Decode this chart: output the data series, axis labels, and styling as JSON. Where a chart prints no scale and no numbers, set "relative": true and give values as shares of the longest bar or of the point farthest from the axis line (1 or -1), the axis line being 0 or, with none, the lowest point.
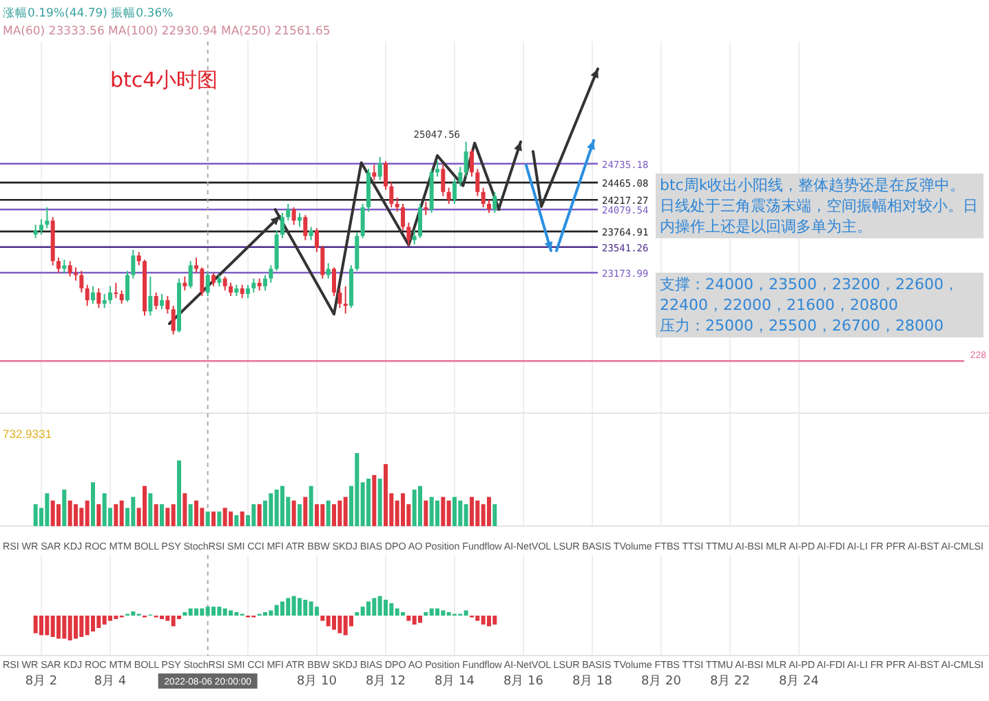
{
  "chart_data": [
    {
      "type": "candlestick",
      "title": "btc4小时图",
      "grid": "x",
      "tick_labels": false,
      "xlim": [
        "2022-07-31T19:12",
        "2022-08-29T12:29"
      ],
      "ylim": [
        21163,
        26487
      ],
      "xticks": [
        "2022-08-02",
        "2022-08-04",
        "2022-08-08",
        "2022-08-10",
        "2022-08-12",
        "2022-08-14",
        "2022-08-16",
        "2022-08-18",
        "2022-08-20",
        "2022-08-22",
        "2022-08-24"
      ],
      "x": [
        "2022-08-01T20:00",
        "2022-08-02T00:00",
        "2022-08-02T04:00",
        "2022-08-02T08:00",
        "2022-08-02T12:00",
        "2022-08-02T16:00",
        "2022-08-02T20:00",
        "2022-08-03T00:00",
        "2022-08-03T04:00",
        "2022-08-03T08:00",
        "2022-08-03T12:00",
        "2022-08-03T16:00",
        "2022-08-03T20:00",
        "2022-08-04T00:00",
        "2022-08-04T04:00",
        "2022-08-04T08:00",
        "2022-08-04T12:00",
        "2022-08-04T16:00",
        "2022-08-04T20:00",
        "2022-08-05T00:00",
        "2022-08-05T04:00",
        "2022-08-05T08:00",
        "2022-08-05T12:00",
        "2022-08-05T16:00",
        "2022-08-05T20:00",
        "2022-08-06T00:00",
        "2022-08-06T04:00",
        "2022-08-06T08:00",
        "2022-08-06T12:00",
        "2022-08-06T16:00",
        "2022-08-06T20:00",
        "2022-08-07T00:00",
        "2022-08-07T04:00",
        "2022-08-07T08:00",
        "2022-08-07T12:00",
        "2022-08-07T16:00",
        "2022-08-07T20:00",
        "2022-08-08T00:00",
        "2022-08-08T04:00",
        "2022-08-08T08:00",
        "2022-08-08T12:00",
        "2022-08-08T16:00",
        "2022-08-08T20:00",
        "2022-08-09T00:00",
        "2022-08-09T04:00",
        "2022-08-09T08:00",
        "2022-08-09T12:00",
        "2022-08-09T16:00",
        "2022-08-09T20:00",
        "2022-08-10T00:00",
        "2022-08-10T04:00",
        "2022-08-10T08:00",
        "2022-08-10T12:00",
        "2022-08-10T16:00",
        "2022-08-10T20:00",
        "2022-08-11T00:00",
        "2022-08-11T04:00",
        "2022-08-11T08:00",
        "2022-08-11T12:00",
        "2022-08-11T16:00",
        "2022-08-11T20:00",
        "2022-08-12T00:00",
        "2022-08-12T04:00",
        "2022-08-12T08:00",
        "2022-08-12T12:00",
        "2022-08-12T16:00",
        "2022-08-12T20:00",
        "2022-08-13T00:00",
        "2022-08-13T04:00",
        "2022-08-13T08:00",
        "2022-08-13T12:00",
        "2022-08-13T16:00",
        "2022-08-13T20:00",
        "2022-08-14T00:00",
        "2022-08-14T04:00",
        "2022-08-14T08:00",
        "2022-08-14T12:00",
        "2022-08-14T16:00",
        "2022-08-14T20:00",
        "2022-08-15T00:00",
        "2022-08-15T04:00"
      ],
      "ohlc": [
        [
          23720,
          23860,
          23670,
          23780
        ],
        [
          23780,
          23940,
          23720,
          23860
        ],
        [
          23860,
          24110,
          23810,
          23920
        ],
        [
          23920,
          23970,
          23280,
          23340
        ],
        [
          23340,
          23390,
          23170,
          23230
        ],
        [
          23230,
          23360,
          23170,
          23280
        ],
        [
          23280,
          23340,
          23120,
          23170
        ],
        [
          23170,
          23250,
          23060,
          23140
        ],
        [
          23140,
          23200,
          22890,
          22950
        ],
        [
          22950,
          23000,
          22700,
          22780
        ],
        [
          22780,
          22980,
          22730,
          22890
        ],
        [
          22890,
          22950,
          22670,
          22730
        ],
        [
          22730,
          22870,
          22670,
          22780
        ],
        [
          22780,
          22980,
          22730,
          22890
        ],
        [
          22890,
          23030,
          22810,
          22870
        ],
        [
          22870,
          22920,
          22730,
          22780
        ],
        [
          22780,
          23200,
          22760,
          23140
        ],
        [
          23140,
          23500,
          23090,
          23420
        ],
        [
          23420,
          23470,
          23280,
          23340
        ],
        [
          23340,
          23360,
          22560,
          22620
        ],
        [
          22620,
          23120,
          22560,
          22840
        ],
        [
          22840,
          22890,
          22650,
          22700
        ],
        [
          22700,
          22870,
          22650,
          22780
        ],
        [
          22780,
          22840,
          22590,
          22650
        ],
        [
          22650,
          22700,
          22290,
          22340
        ],
        [
          22340,
          23090,
          22320,
          23030
        ],
        [
          23030,
          23120,
          22920,
          22980
        ],
        [
          22980,
          23340,
          22950,
          23280
        ],
        [
          23280,
          23390,
          23170,
          23230
        ],
        [
          23230,
          23250,
          22840,
          22890
        ],
        [
          22890,
          23200,
          22840,
          23140
        ],
        [
          23140,
          23170,
          22980,
          23030
        ],
        [
          23030,
          23140,
          22980,
          23090
        ],
        [
          23090,
          23120,
          22920,
          22980
        ],
        [
          22980,
          23030,
          22840,
          22890
        ],
        [
          22890,
          23000,
          22840,
          22950
        ],
        [
          22950,
          23000,
          22810,
          22870
        ],
        [
          22870,
          23000,
          22810,
          22950
        ],
        [
          22950,
          23090,
          22890,
          23030
        ],
        [
          23030,
          23090,
          22920,
          22980
        ],
        [
          22980,
          23140,
          22920,
          23090
        ],
        [
          23090,
          23280,
          23030,
          23230
        ],
        [
          23230,
          23780,
          23200,
          23720
        ],
        [
          23720,
          24030,
          23670,
          23970
        ],
        [
          23970,
          24160,
          23920,
          24080
        ],
        [
          24080,
          24110,
          23860,
          23920
        ],
        [
          23920,
          24030,
          23830,
          23970
        ],
        [
          23970,
          24000,
          23640,
          23700
        ],
        [
          23700,
          23830,
          23640,
          23780
        ],
        [
          23780,
          23810,
          23470,
          23530
        ],
        [
          23530,
          23560,
          23090,
          23140
        ],
        [
          23140,
          23310,
          23090,
          23230
        ],
        [
          23230,
          23250,
          22840,
          22890
        ],
        [
          22890,
          22950,
          22670,
          22730
        ],
        [
          22730,
          22980,
          22590,
          22700
        ],
        [
          22700,
          23280,
          22670,
          23230
        ],
        [
          23230,
          23750,
          23200,
          23700
        ],
        [
          23700,
          24160,
          23670,
          24110
        ],
        [
          24110,
          24660,
          24050,
          24610
        ],
        [
          24610,
          24720,
          24500,
          24550
        ],
        [
          24550,
          24830,
          24500,
          24740
        ],
        [
          24740,
          24770,
          24360,
          24410
        ],
        [
          24410,
          24470,
          24110,
          24160
        ],
        [
          24160,
          24250,
          24050,
          24110
        ],
        [
          24110,
          24160,
          23780,
          23830
        ],
        [
          23830,
          23890,
          23560,
          23640
        ],
        [
          23640,
          23780,
          23580,
          23700
        ],
        [
          23700,
          24160,
          23670,
          24110
        ],
        [
          24110,
          24190,
          24000,
          24080
        ],
        [
          24080,
          24660,
          24030,
          24610
        ],
        [
          24610,
          24770,
          24550,
          24660
        ],
        [
          24660,
          24720,
          24270,
          24330
        ],
        [
          24330,
          24390,
          24160,
          24220
        ],
        [
          24220,
          24520,
          24160,
          24470
        ],
        [
          24470,
          24690,
          24410,
          24610
        ],
        [
          24610,
          25047.56,
          24550,
          24910
        ],
        [
          24910,
          24940,
          24550,
          24610
        ],
        [
          24610,
          24660,
          24270,
          24330
        ],
        [
          24330,
          24390,
          24110,
          24160
        ],
        [
          24160,
          24220,
          24030,
          24080
        ],
        [
          24080,
          24330,
          24030,
          24270
        ]
      ],
      "colors": [
        "#2ebd85",
        "#2ebd85",
        "#2ebd85",
        "#e0363f",
        "#e0363f",
        "#2ebd85",
        "#e0363f",
        "#e0363f",
        "#e0363f",
        "#e0363f",
        "#2ebd85",
        "#e0363f",
        "#2ebd85",
        "#2ebd85",
        "#e0363f",
        "#e0363f",
        "#2ebd85",
        "#2ebd85",
        "#e0363f",
        "#e0363f",
        "#2ebd85",
        "#e0363f",
        "#2ebd85",
        "#e0363f",
        "#e0363f",
        "#2ebd85",
        "#e0363f",
        "#2ebd85",
        "#e0363f",
        "#e0363f",
        "#2ebd85",
        "#e0363f",
        "#2ebd85",
        "#e0363f",
        "#e0363f",
        "#2ebd85",
        "#e0363f",
        "#2ebd85",
        "#2ebd85",
        "#e0363f",
        "#2ebd85",
        "#2ebd85",
        "#2ebd85",
        "#2ebd85",
        "#2ebd85",
        "#e0363f",
        "#2ebd85",
        "#e0363f",
        "#2ebd85",
        "#e0363f",
        "#e0363f",
        "#2ebd85",
        "#e0363f",
        "#e0363f",
        "#e0363f",
        "#2ebd85",
        "#2ebd85",
        "#2ebd85",
        "#2ebd85",
        "#e0363f",
        "#2ebd85",
        "#e0363f",
        "#e0363f",
        "#e0363f",
        "#e0363f",
        "#e0363f",
        "#2ebd85",
        "#2ebd85",
        "#e0363f",
        "#2ebd85",
        "#2ebd85",
        "#e0363f",
        "#e0363f",
        "#2ebd85",
        "#2ebd85",
        "#2ebd85",
        "#e0363f",
        "#e0363f",
        "#e0363f",
        "#e0363f",
        "#2ebd85"
      ],
      "series": [
        {
          "type": "line",
          "color": "#333333",
          "marker": "none",
          "x": [
            "2022-08-08T19:00",
            "2022-08-10T12:00",
            "2022-08-11T07:00",
            "2022-08-12T16:00",
            "2022-08-13T12:00",
            "2022-08-14T06:00",
            "2022-08-14T14:00",
            "2022-08-15T07:00"
          ],
          "values": [
            24080,
            22580,
            24750,
            23570,
            24850,
            24420,
            25030,
            24080
          ]
        }
      ],
      "ref_lines": [
        {
          "axis": "y",
          "value": 24735.18,
          "label": "24735.18",
          "color": "#7b5cc4"
        },
        {
          "axis": "y",
          "value": 24465.08,
          "label": "24465.08",
          "color": "#222222"
        },
        {
          "axis": "y",
          "value": 24217.27,
          "label": "24217.27",
          "color": "#222222"
        },
        {
          "axis": "y",
          "value": 24079.54,
          "label": "24079.54",
          "color": "#7b5cc4"
        },
        {
          "axis": "y",
          "value": 23764.91,
          "label": "23764.91",
          "color": "#222222"
        },
        {
          "axis": "y",
          "value": 23541.26,
          "label": "23541.26",
          "color": "#4a2d8a"
        },
        {
          "axis": "y",
          "value": 23173.99,
          "label": "23173.99",
          "color": "#7b5cc4"
        },
        {
          "axis": "y",
          "value": 21910,
          "color": "#e8709a"
        },
        {
          "axis": "x",
          "value": "2022-08-06T20:00",
          "color": "#aaaaaa",
          "line_style": "dashed"
        }
      ],
      "annotations": [
        "涨幅0.19%(44.79)  振幅0.36%",
        "MA(60) 23333.56  MA(100) 22930.94  MA(250) 21561.65",
        "btc周k收出小阳线，整体趋势还是在反弹中。日线处于三角震荡末端，空间振幅相对较小。日内操作上还是以回调多单为主。",
        "支撑：24000，23500，23200，22600，22400，22000，21600，20800\n压力：25000，25500，26700，28000",
        "228",
        "25047.56"
      ]
    },
    {
      "type": "bar",
      "relative": true,
      "grid": "x",
      "tick_labels": false,
      "xlim": [
        "2022-07-31T19:12",
        "2022-08-29T12:29"
      ],
      "xticks": [
        "2022-08-02",
        "2022-08-04",
        "2022-08-08",
        "2022-08-10",
        "2022-08-12",
        "2022-08-14",
        "2022-08-16",
        "2022-08-18",
        "2022-08-20",
        "2022-08-22",
        "2022-08-24"
      ],
      "x": [
        "2022-08-01T20:00",
        "2022-08-02T00:00",
        "2022-08-02T04:00",
        "2022-08-02T08:00",
        "2022-08-02T12:00",
        "2022-08-02T16:00",
        "2022-08-02T20:00",
        "2022-08-03T00:00",
        "2022-08-03T04:00",
        "2022-08-03T08:00",
        "2022-08-03T12:00",
        "2022-08-03T16:00",
        "2022-08-03T20:00",
        "2022-08-04T00:00",
        "2022-08-04T04:00",
        "2022-08-04T08:00",
        "2022-08-04T12:00",
        "2022-08-04T16:00",
        "2022-08-04T20:00",
        "2022-08-05T00:00",
        "2022-08-05T04:00",
        "2022-08-05T08:00",
        "2022-08-05T12:00",
        "2022-08-05T16:00",
        "2022-08-05T20:00",
        "2022-08-06T00:00",
        "2022-08-06T04:00",
        "2022-08-06T08:00",
        "2022-08-06T12:00",
        "2022-08-06T16:00",
        "2022-08-06T20:00",
        "2022-08-07T00:00",
        "2022-08-07T04:00",
        "2022-08-07T08:00",
        "2022-08-07T12:00",
        "2022-08-07T16:00",
        "2022-08-07T20:00",
        "2022-08-08T00:00",
        "2022-08-08T04:00",
        "2022-08-08T08:00",
        "2022-08-08T12:00",
        "2022-08-08T16:00",
        "2022-08-08T20:00",
        "2022-08-09T00:00",
        "2022-08-09T04:00",
        "2022-08-09T08:00",
        "2022-08-09T12:00",
        "2022-08-09T16:00",
        "2022-08-09T20:00",
        "2022-08-10T00:00",
        "2022-08-10T04:00",
        "2022-08-10T08:00",
        "2022-08-10T12:00",
        "2022-08-10T16:00",
        "2022-08-10T20:00",
        "2022-08-11T00:00",
        "2022-08-11T04:00",
        "2022-08-11T08:00",
        "2022-08-11T12:00",
        "2022-08-11T16:00",
        "2022-08-11T20:00",
        "2022-08-12T00:00",
        "2022-08-12T04:00",
        "2022-08-12T08:00",
        "2022-08-12T12:00",
        "2022-08-12T16:00",
        "2022-08-12T20:00",
        "2022-08-13T00:00",
        "2022-08-13T04:00",
        "2022-08-13T08:00",
        "2022-08-13T12:00",
        "2022-08-13T16:00",
        "2022-08-13T20:00",
        "2022-08-14T00:00",
        "2022-08-14T04:00",
        "2022-08-14T08:00",
        "2022-08-14T12:00",
        "2022-08-14T16:00",
        "2022-08-14T20:00",
        "2022-08-15T00:00",
        "2022-08-15T04:00"
      ],
      "values": [
        0.3,
        0.25,
        0.45,
        0.35,
        0.3,
        0.5,
        0.35,
        0.3,
        0.25,
        0.35,
        0.6,
        0.3,
        0.45,
        0.25,
        0.3,
        0.35,
        0.25,
        0.4,
        0.25,
        0.55,
        0.45,
        0.3,
        0.3,
        0.25,
        0.3,
        0.9,
        0.45,
        0.3,
        0.35,
        0.25,
        0.2,
        0.2,
        0.2,
        0.25,
        0.2,
        0.15,
        0.2,
        0.15,
        0.3,
        0.3,
        0.35,
        0.45,
        0.5,
        0.55,
        0.4,
        0.35,
        0.3,
        0.4,
        0.55,
        0.3,
        0.3,
        0.35,
        0.3,
        0.35,
        0.4,
        0.55,
        1,
        0.6,
        0.65,
        0.7,
        0.65,
        0.85,
        0.45,
        0.35,
        0.45,
        0.3,
        0.5,
        0.55,
        0.35,
        0.4,
        0.35,
        0.4,
        0.35,
        0.4,
        0.35,
        0.3,
        0.4,
        0.35,
        0.3,
        0.4,
        0.3
      ],
      "colors": [
        "#2ebd85",
        "#2ebd85",
        "#2ebd85",
        "#e0363f",
        "#e0363f",
        "#2ebd85",
        "#e0363f",
        "#e0363f",
        "#e0363f",
        "#e0363f",
        "#2ebd85",
        "#e0363f",
        "#2ebd85",
        "#2ebd85",
        "#e0363f",
        "#e0363f",
        "#2ebd85",
        "#2ebd85",
        "#e0363f",
        "#e0363f",
        "#2ebd85",
        "#e0363f",
        "#2ebd85",
        "#e0363f",
        "#e0363f",
        "#2ebd85",
        "#e0363f",
        "#2ebd85",
        "#e0363f",
        "#e0363f",
        "#2ebd85",
        "#e0363f",
        "#2ebd85",
        "#e0363f",
        "#e0363f",
        "#2ebd85",
        "#e0363f",
        "#2ebd85",
        "#2ebd85",
        "#e0363f",
        "#2ebd85",
        "#2ebd85",
        "#2ebd85",
        "#2ebd85",
        "#2ebd85",
        "#e0363f",
        "#2ebd85",
        "#e0363f",
        "#2ebd85",
        "#e0363f",
        "#e0363f",
        "#2ebd85",
        "#e0363f",
        "#e0363f",
        "#e0363f",
        "#2ebd85",
        "#2ebd85",
        "#2ebd85",
        "#2ebd85",
        "#e0363f",
        "#2ebd85",
        "#e0363f",
        "#e0363f",
        "#e0363f",
        "#e0363f",
        "#e0363f",
        "#2ebd85",
        "#2ebd85",
        "#e0363f",
        "#2ebd85",
        "#2ebd85",
        "#e0363f",
        "#e0363f",
        "#2ebd85",
        "#2ebd85",
        "#2ebd85",
        "#e0363f",
        "#e0363f",
        "#e0363f",
        "#e0363f",
        "#2ebd85"
      ],
      "ref_lines": [
        {
          "axis": "x",
          "value": "2022-08-06T20:00",
          "color": "#aaaaaa",
          "line_style": "dashed"
        }
      ],
      "annotations": [
        "732.9331",
        "RSI  WR  SAR  KDJ  ROC  MTM  BOLL  PSY  StochRSI  SMI  CCI  MFI  ATR  BBW  SKDJ  BIAS  DPO  AO  Position  Fundflow  AI-NetVOL  LSUR  BASIS  TVolume  FTBS  TTSI  TTMU  AI-BSI  MLR  AI-PD  AI-FDI  AI-LI  FR  PFR  AI-BST  AI-CMLSI"
      ]
    },
    {
      "type": "bar",
      "relative": true,
      "grid": "x",
      "tick_labels": "x",
      "xlim": [
        "2022-07-31T19:12",
        "2022-08-29T12:29"
      ],
      "xticks": [
        {
          "value": "2022-08-02",
          "label": "8月 2"
        },
        {
          "value": "2022-08-04",
          "label": "8月 4"
        },
        {
          "value": "2022-08-08",
          "label": null
        },
        {
          "value": "2022-08-10",
          "label": "8月 10"
        },
        {
          "value": "2022-08-12",
          "label": "8月 12"
        },
        {
          "value": "2022-08-14",
          "label": "8月 14"
        },
        {
          "value": "2022-08-16",
          "label": "8月 16"
        },
        {
          "value": "2022-08-18",
          "label": "8月 18"
        },
        {
          "value": "2022-08-20",
          "label": "8月 20"
        },
        {
          "value": "2022-08-22",
          "label": "8月 22"
        },
        {
          "value": "2022-08-24",
          "label": "8月 24"
        }
      ],
      "x": [
        "2022-08-01T20:00",
        "2022-08-02T00:00",
        "2022-08-02T04:00",
        "2022-08-02T08:00",
        "2022-08-02T12:00",
        "2022-08-02T16:00",
        "2022-08-02T20:00",
        "2022-08-03T00:00",
        "2022-08-03T04:00",
        "2022-08-03T08:00",
        "2022-08-03T12:00",
        "2022-08-03T16:00",
        "2022-08-03T20:00",
        "2022-08-04T00:00",
        "2022-08-04T04:00",
        "2022-08-04T08:00",
        "2022-08-04T12:00",
        "2022-08-04T16:00",
        "2022-08-04T20:00",
        "2022-08-05T00:00",
        "2022-08-05T04:00",
        "2022-08-05T08:00",
        "2022-08-05T12:00",
        "2022-08-05T16:00",
        "2022-08-05T20:00",
        "2022-08-06T00:00",
        "2022-08-06T04:00",
        "2022-08-06T08:00",
        "2022-08-06T12:00",
        "2022-08-06T16:00",
        "2022-08-06T20:00",
        "2022-08-07T00:00",
        "2022-08-07T04:00",
        "2022-08-07T08:00",
        "2022-08-07T12:00",
        "2022-08-07T16:00",
        "2022-08-07T20:00",
        "2022-08-08T00:00",
        "2022-08-08T04:00",
        "2022-08-08T08:00",
        "2022-08-08T12:00",
        "2022-08-08T16:00",
        "2022-08-08T20:00",
        "2022-08-09T00:00",
        "2022-08-09T04:00",
        "2022-08-09T08:00",
        "2022-08-09T12:00",
        "2022-08-09T16:00",
        "2022-08-09T20:00",
        "2022-08-10T00:00",
        "2022-08-10T04:00",
        "2022-08-10T08:00",
        "2022-08-10T12:00",
        "2022-08-10T16:00",
        "2022-08-10T20:00",
        "2022-08-11T00:00",
        "2022-08-11T04:00",
        "2022-08-11T08:00",
        "2022-08-11T12:00",
        "2022-08-11T16:00",
        "2022-08-11T20:00",
        "2022-08-12T00:00",
        "2022-08-12T04:00",
        "2022-08-12T08:00",
        "2022-08-12T12:00",
        "2022-08-12T16:00",
        "2022-08-12T20:00",
        "2022-08-13T00:00",
        "2022-08-13T04:00",
        "2022-08-13T08:00",
        "2022-08-13T12:00",
        "2022-08-13T16:00",
        "2022-08-13T20:00",
        "2022-08-14T00:00",
        "2022-08-14T04:00",
        "2022-08-14T08:00",
        "2022-08-14T12:00",
        "2022-08-14T16:00",
        "2022-08-14T20:00",
        "2022-08-15T00:00",
        "2022-08-15T04:00"
      ],
      "values": [
        -0.71,
        -0.79,
        -0.79,
        -0.86,
        -0.93,
        -0.93,
        -1,
        -0.93,
        -0.86,
        -0.79,
        -0.64,
        -0.5,
        -0.36,
        -0.21,
        -0.14,
        -0.07,
        0.07,
        0.17,
        0.07,
        -0.07,
        0.04,
        -0.07,
        -0.14,
        -0.21,
        -0.43,
        -0.14,
        0.14,
        0.29,
        0.29,
        0.29,
        0.36,
        0.36,
        0.36,
        0.29,
        0.21,
        0.14,
        0.07,
        -0.07,
        -0.07,
        0.07,
        0.14,
        0.21,
        0.43,
        0.57,
        0.71,
        0.79,
        0.71,
        0.64,
        0.57,
        0.36,
        -0.21,
        -0.43,
        -0.57,
        -0.71,
        -0.79,
        -0.43,
        0.14,
        0.36,
        0.57,
        0.71,
        0.79,
        0.64,
        0.5,
        0.29,
        0.14,
        -0.21,
        -0.36,
        -0.29,
        0.14,
        0.29,
        0.29,
        0.21,
        0.14,
        0.07,
        0.07,
        0.21,
        -0.07,
        -0.21,
        -0.36,
        -0.43,
        -0.36
      ],
      "colors": [
        "#e0363f",
        "#e0363f",
        "#e0363f",
        "#e0363f",
        "#e0363f",
        "#e0363f",
        "#e0363f",
        "#e0363f",
        "#e0363f",
        "#e0363f",
        "#e0363f",
        "#e0363f",
        "#e0363f",
        "#e0363f",
        "#e0363f",
        "#e0363f",
        "#2ebd85",
        "#2ebd85",
        "#2ebd85",
        "#e0363f",
        "#2ebd85",
        "#e0363f",
        "#e0363f",
        "#e0363f",
        "#e0363f",
        "#e0363f",
        "#2ebd85",
        "#2ebd85",
        "#2ebd85",
        "#2ebd85",
        "#2ebd85",
        "#2ebd85",
        "#2ebd85",
        "#2ebd85",
        "#2ebd85",
        "#2ebd85",
        "#2ebd85",
        "#e0363f",
        "#e0363f",
        "#2ebd85",
        "#2ebd85",
        "#2ebd85",
        "#2ebd85",
        "#2ebd85",
        "#2ebd85",
        "#2ebd85",
        "#2ebd85",
        "#2ebd85",
        "#2ebd85",
        "#2ebd85",
        "#e0363f",
        "#e0363f",
        "#e0363f",
        "#e0363f",
        "#e0363f",
        "#e0363f",
        "#2ebd85",
        "#2ebd85",
        "#2ebd85",
        "#2ebd85",
        "#2ebd85",
        "#2ebd85",
        "#2ebd85",
        "#2ebd85",
        "#2ebd85",
        "#e0363f",
        "#e0363f",
        "#e0363f",
        "#2ebd85",
        "#2ebd85",
        "#2ebd85",
        "#2ebd85",
        "#2ebd85",
        "#2ebd85",
        "#2ebd85",
        "#2ebd85",
        "#e0363f",
        "#e0363f",
        "#e0363f",
        "#e0363f",
        "#e0363f"
      ],
      "ref_lines": [
        {
          "axis": "x",
          "value": "2022-08-06T20:00",
          "label": "2022-08-06 20:00:00",
          "color": "#aaaaaa",
          "line_style": "dashed"
        }
      ],
      "annotations": [
        "RSI  WR  SAR  KDJ  ROC  MTM  BOLL  PSY  StochRSI  SMI  CCI  MFI  ATR  BBW  SKDJ  BIAS  DPO  AO  Position  Fundflow  AI-NetVOL  LSUR  BASIS  TVolume  FTBS  TTSI  TTMU  AI-BSI  MLR  AI-PD  AI-FDI  AI-LI  FR  PFR  AI-BST  AI-CMLSI"
      ]
    }
  ]
}
